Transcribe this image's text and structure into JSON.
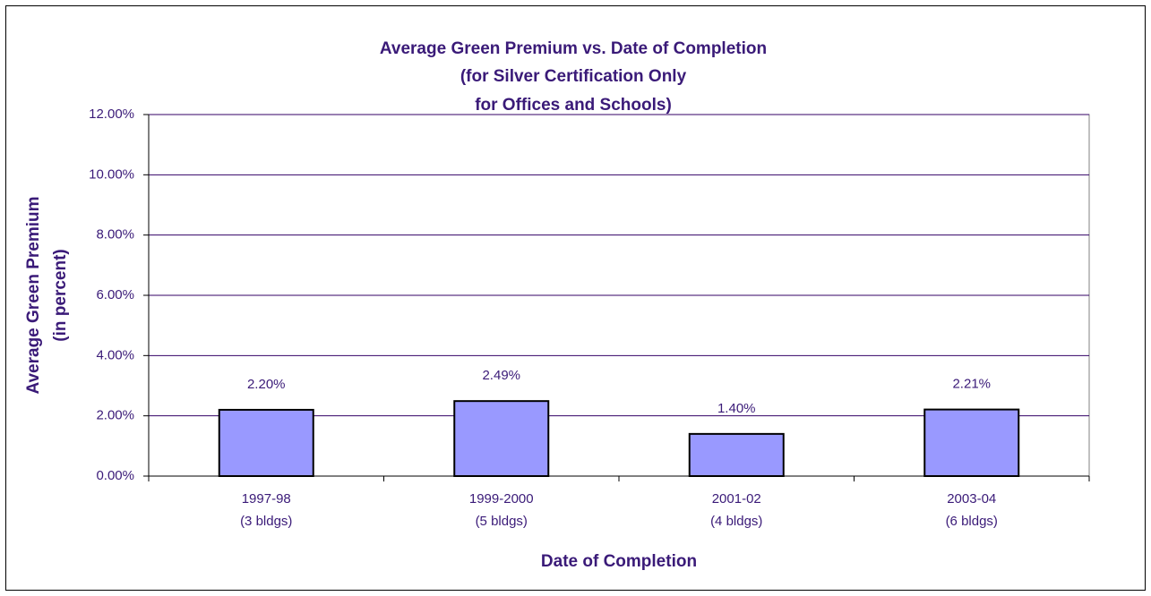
{
  "chart_data": {
    "type": "bar",
    "title": [
      "Average Green Premium vs. Date of Completion",
      "(for Silver Certification Only",
      "for Offices and Schools)"
    ],
    "x_label": "Date of Completion",
    "y_label": [
      "Average Green Premium",
      "(in percent)"
    ],
    "categories": [
      [
        "1997-98",
        "(3 bldgs)"
      ],
      [
        "1999-2000",
        "(5 bldgs)"
      ],
      [
        "2001-02",
        "(4 bldgs)"
      ],
      [
        "2003-04",
        "(6 bldgs)"
      ]
    ],
    "values": [
      2.2,
      2.49,
      1.4,
      2.21
    ],
    "value_labels": [
      "2.20%",
      "2.49%",
      "1.40%",
      "2.21%"
    ],
    "color": "#9999ff",
    "ylim": [
      0,
      12
    ],
    "yticks": [
      {
        "value": 0,
        "label": "0.00%"
      },
      {
        "value": 2,
        "label": "2.00%"
      },
      {
        "value": 4,
        "label": "4.00%"
      },
      {
        "value": 6,
        "label": "6.00%"
      },
      {
        "value": 8,
        "label": "8.00%"
      },
      {
        "value": 10,
        "label": "10.00%"
      },
      {
        "value": 12,
        "label": "12.00%"
      }
    ],
    "grid": true
  }
}
